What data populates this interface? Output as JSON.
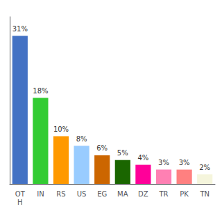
{
  "chart_data": {
    "type": "bar",
    "categories": [
      "OT\nH",
      "IN",
      "RS",
      "US",
      "EG",
      "MA",
      "DZ",
      "TR",
      "PK",
      "TN"
    ],
    "values": [
      31,
      18,
      10,
      8,
      6,
      5,
      4,
      3,
      3,
      2
    ],
    "value_labels": [
      "31%",
      "18%",
      "10%",
      "8%",
      "6%",
      "5%",
      "4%",
      "3%",
      "3%",
      "2%"
    ],
    "colors": [
      "#4472c4",
      "#33cc33",
      "#ff9900",
      "#99ccff",
      "#cc6600",
      "#1a6600",
      "#ff0099",
      "#ff80b3",
      "#ff8080",
      "#f5f5dc"
    ],
    "ylim": [
      0,
      35
    ],
    "grid": false,
    "data_labels": true,
    "tick_labels": "x"
  }
}
